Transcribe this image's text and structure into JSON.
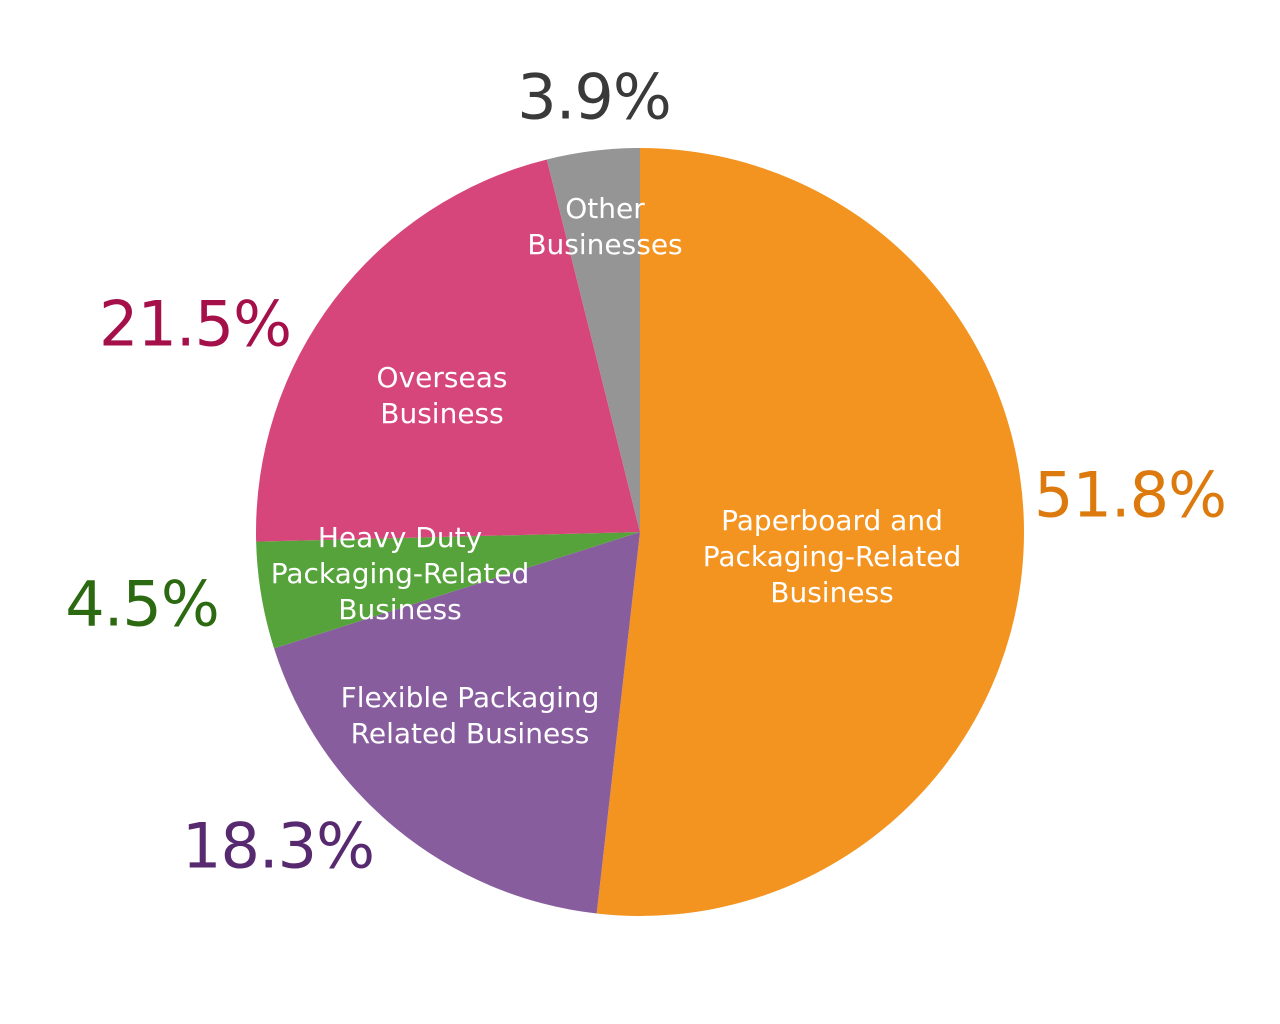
{
  "chart_data": {
    "type": "pie",
    "start_angle": "top",
    "direction": "clockwise",
    "slices": [
      {
        "label": "Paperboard and\nPackaging-Related\nBusiness",
        "value": 51.8,
        "value_label": "51.8%",
        "color": "#F39320",
        "label_color": "#DC7A0E"
      },
      {
        "label": "Flexible Packaging\nRelated Business",
        "value": 18.3,
        "value_label": "18.3%",
        "color": "#875D9E",
        "label_color": "#57296F"
      },
      {
        "label": "Heavy Duty\nPackaging-Related\nBusiness",
        "value": 4.5,
        "value_label": "4.5%",
        "color": "#56A23B",
        "label_color": "#2C6A12"
      },
      {
        "label": "Overseas\nBusiness",
        "value": 21.5,
        "value_label": "21.5%",
        "color": "#D6467A",
        "label_color": "#A5104A"
      },
      {
        "label": "Other\nBusinesses",
        "value": 3.9,
        "value_label": "3.9%",
        "color": "#959595",
        "label_color": "#3A3A3A"
      }
    ]
  }
}
